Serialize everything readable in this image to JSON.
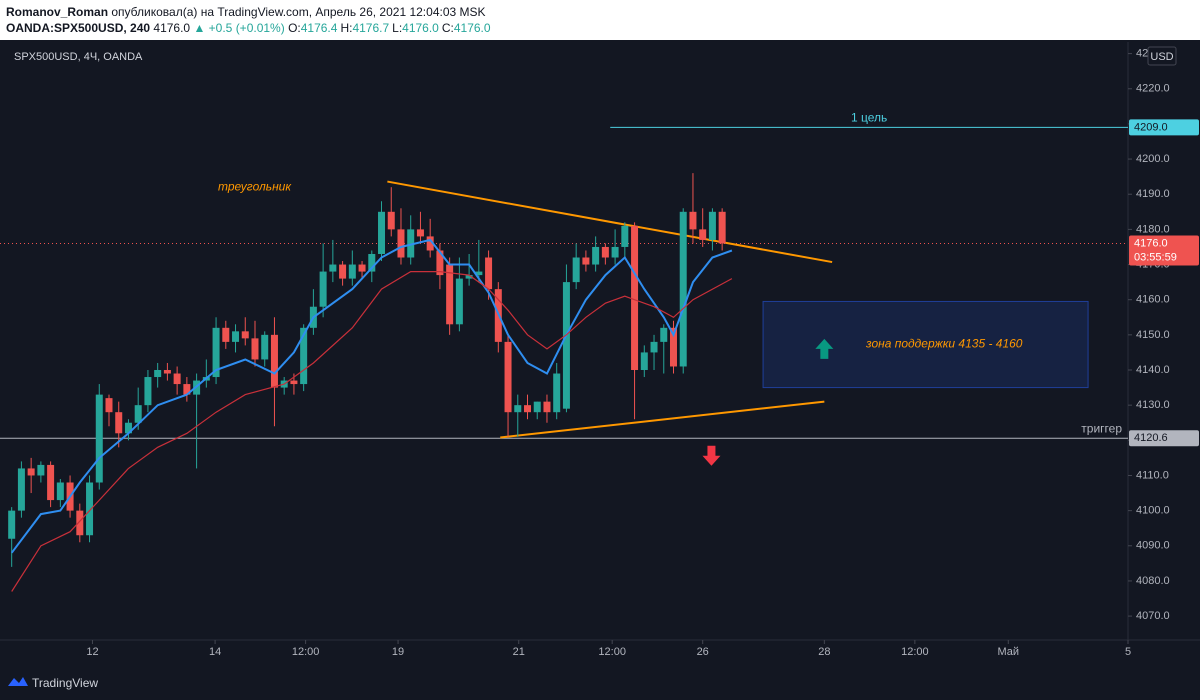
{
  "header": {
    "author": "Romanov_Roman",
    "published": "опубликовал(а) на TradingView.com, Апрель 26, 2021 12:04:03 MSK",
    "symbol": "OANDA:SPX500USD, 240",
    "last": "4176.0",
    "change": "▲ +0.5 (+0.01%)",
    "ohlc": [
      {
        "label": "O:",
        "value": "4176.4"
      },
      {
        "label": "H:",
        "value": "4176.7"
      },
      {
        "label": "L:",
        "value": "4176.0"
      },
      {
        "label": "C:",
        "value": "4176.0"
      }
    ]
  },
  "chart_data": {
    "type": "candlestick",
    "title": "SPX500USD, 4Ч, OANDA",
    "currency": "USD",
    "up_color": "#26a69a",
    "down_color": "#ef5350",
    "open": [
      4092,
      4100,
      4112,
      4110,
      4113,
      4103,
      4108,
      4100,
      4093,
      4108,
      4132,
      4128,
      4122,
      4125,
      4130,
      4138,
      4140,
      4139,
      4136,
      4133,
      4137,
      4138,
      4152,
      4148,
      4151,
      4149,
      4143,
      4150,
      4135,
      4137,
      4136,
      4152,
      4158,
      4168,
      4170,
      4166,
      4170,
      4168,
      4173,
      4185,
      4180,
      4172,
      4180,
      4178,
      4174,
      4170,
      4153,
      4166,
      4167,
      4172,
      4163,
      4148,
      4128,
      4130,
      4128,
      4131,
      4128,
      4129,
      4165,
      4172,
      4170,
      4175,
      4172,
      4175,
      4181,
      4140,
      4145,
      4148,
      4152,
      4141,
      4185,
      4180,
      4177,
      4185
    ],
    "high": [
      4101,
      4114,
      4115,
      4114,
      4114,
      4109,
      4110,
      4102,
      4110,
      4136,
      4133,
      4131,
      4126,
      4135,
      4140,
      4142,
      4142,
      4141,
      4138,
      4139,
      4143,
      4155,
      4154,
      4153,
      4155,
      4154,
      4151,
      4155,
      4138,
      4139,
      4153,
      4163,
      4176,
      4177,
      4171,
      4174,
      4171,
      4174,
      4188,
      4192,
      4186,
      4184,
      4185,
      4183,
      4176,
      4172,
      4172,
      4173,
      4177,
      4174,
      4165,
      4150,
      4133,
      4133,
      4131,
      4133,
      4142,
      4170,
      4176,
      4174,
      4178,
      4176,
      4180,
      4182,
      4182,
      4147,
      4150,
      4153,
      4154,
      4186,
      4196,
      4186,
      4186,
      4186
    ],
    "low": [
      4084,
      4098,
      4105,
      4108,
      4101,
      4101,
      4098,
      4091,
      4091,
      4106,
      4124,
      4118,
      4120,
      4123,
      4128,
      4135,
      4137,
      4133,
      4131,
      4112,
      4135,
      4136,
      4146,
      4145,
      4147,
      4141,
      4141,
      4124,
      4133,
      4133,
      4134,
      4150,
      4155,
      4165,
      4164,
      4164,
      4166,
      4165,
      4171,
      4178,
      4170,
      4170,
      4176,
      4172,
      4163,
      4150,
      4151,
      4164,
      4165,
      4160,
      4145,
      4121,
      4121,
      4126,
      4126,
      4125,
      4126,
      4128,
      4163,
      4168,
      4168,
      4170,
      4170,
      4172,
      4126,
      4138,
      4140,
      4139,
      4139,
      4139,
      4176,
      4175,
      4174,
      4174
    ],
    "close": [
      4100,
      4112,
      4110,
      4113,
      4103,
      4108,
      4100,
      4093,
      4108,
      4133,
      4128,
      4122,
      4125,
      4130,
      4138,
      4140,
      4139,
      4136,
      4133,
      4137,
      4138,
      4152,
      4148,
      4151,
      4149,
      4143,
      4150,
      4135,
      4137,
      4136,
      4152,
      4158,
      4168,
      4170,
      4166,
      4170,
      4168,
      4173,
      4185,
      4180,
      4172,
      4180,
      4178,
      4174,
      4167,
      4153,
      4166,
      4167,
      4168,
      4163,
      4148,
      4128,
      4130,
      4128,
      4131,
      4128,
      4139,
      4165,
      4172,
      4170,
      4175,
      4172,
      4175,
      4181,
      4140,
      4145,
      4148,
      4152,
      4141,
      4185,
      4180,
      4177,
      4185,
      4176
    ],
    "overlays": [
      {
        "color": "#2f8ef0",
        "x": [
          0,
          3,
          5,
          7,
          9,
          12,
          15,
          18,
          21,
          24,
          27,
          29,
          31,
          35,
          38,
          40,
          43,
          45,
          47,
          49,
          51,
          53,
          55,
          57,
          59,
          61,
          63,
          65,
          67,
          68,
          70,
          72,
          74
        ],
        "values": [
          4088,
          4099,
          4100,
          4108,
          4115,
          4122,
          4130,
          4133,
          4140,
          4143,
          4139,
          4145,
          4155,
          4163,
          4172,
          4175,
          4177,
          4170,
          4170,
          4162,
          4150,
          4142,
          4139,
          4150,
          4160,
          4167,
          4172,
          4163,
          4155,
          4150,
          4165,
          4172,
          4174
        ]
      },
      {
        "color": "#c8303a",
        "x": [
          0,
          3,
          6,
          9,
          12,
          15,
          18,
          21,
          24,
          28,
          31,
          35,
          38,
          41,
          44,
          47,
          49,
          51,
          53,
          55,
          57,
          59,
          61,
          63,
          66,
          68,
          70,
          74
        ],
        "values": [
          4077,
          4090,
          4094,
          4103,
          4112,
          4118,
          4122,
          4128,
          4133,
          4136,
          4142,
          4152,
          4163,
          4168,
          4168,
          4167,
          4163,
          4157,
          4150,
          4146,
          4150,
          4155,
          4159,
          4161,
          4158,
          4155,
          4160,
          4166
        ]
      }
    ],
    "xlim": [
      -1.2,
      114.7
    ],
    "xticks": [
      {
        "value": 8.3,
        "label": "12"
      },
      {
        "value": 20.9,
        "label": "14"
      },
      {
        "value": 30.2,
        "label": "12:00"
      },
      {
        "value": 39.7,
        "label": "19"
      },
      {
        "value": 52.1,
        "label": "21"
      },
      {
        "value": 61.7,
        "label": "12:00"
      },
      {
        "value": 71.0,
        "label": "26"
      },
      {
        "value": 83.5,
        "label": "28"
      },
      {
        "value": 92.8,
        "label": "12:00"
      },
      {
        "value": 102.4,
        "label": "Май"
      },
      {
        "value": 114.7,
        "label": "5"
      }
    ],
    "ylim": [
      4063.2,
      4233.3
    ],
    "yticks": [
      {
        "value": 4070,
        "label": "4070.0"
      },
      {
        "value": 4080,
        "label": "4080.0"
      },
      {
        "value": 4090,
        "label": "4090.0"
      },
      {
        "value": 4100,
        "label": "4100.0"
      },
      {
        "value": 4110,
        "label": "4110.0"
      },
      {
        "value": 4120,
        "label": "4120.0"
      },
      {
        "value": 4130,
        "label": "4130.0"
      },
      {
        "value": 4140,
        "label": "4140.0"
      },
      {
        "value": 4150,
        "label": "4150.0"
      },
      {
        "value": 4160,
        "label": "4160.0"
      },
      {
        "value": 4170,
        "label": "4170.0"
      },
      {
        "value": 4180,
        "label": "4180.0"
      },
      {
        "value": 4190,
        "label": "4190.0"
      },
      {
        "value": 4200,
        "label": "4200.0"
      },
      {
        "value": 4210,
        "label": "4210.0"
      },
      {
        "value": 4220,
        "label": "4220.0"
      },
      {
        "value": 4230,
        "label": "4230.0"
      }
    ],
    "price_lines": [
      {
        "value": 4209,
        "label": "4209.0",
        "color": "#4dd0e1",
        "from": 61.5,
        "text": "1 цель"
      },
      {
        "value": 4120.6,
        "label": "4120.6",
        "color": "#b2b5be",
        "from": -1.2,
        "text": "триггер"
      },
      {
        "value": 4176,
        "label": "4176.0",
        "color": "#ef5350",
        "from": -1.2,
        "dashed": true,
        "countdown": "03:55:59"
      }
    ],
    "trendlines": [
      {
        "from": [
          38.6,
          4193.6
        ],
        "to": [
          84.3,
          4170.7
        ],
        "color": "#ff9800"
      },
      {
        "from": [
          50.2,
          4120.8
        ],
        "to": [
          83.5,
          4131.0
        ],
        "color": "#ff9800"
      }
    ],
    "annotations": [
      {
        "text": "треугольник",
        "at": [
          21.2,
          4192
        ],
        "color": "#ff9800"
      }
    ],
    "rectangle": {
      "x": [
        77.2,
        110.6
      ],
      "y": [
        4135,
        4159.5
      ],
      "text": "зона поддержки 4135 - 4160",
      "color": "#2962ff",
      "text_color": "#ff9800"
    },
    "arrows": [
      {
        "dir": "up",
        "at": [
          83.5,
          4146
        ],
        "color": "#089981"
      },
      {
        "dir": "down",
        "at": [
          71.9,
          4115.6
        ],
        "color": "#f23645"
      }
    ]
  },
  "footer": {
    "brand": "TradingView"
  }
}
